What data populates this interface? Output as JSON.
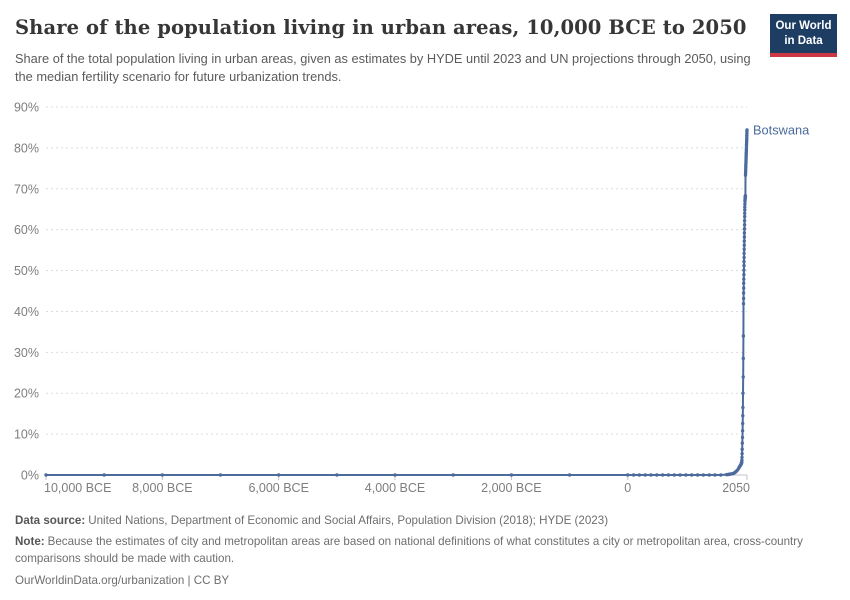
{
  "header": {
    "title": "Share of the population living in urban areas, 10,000 BCE to 2050",
    "subtitle": "Share of the total population living in urban areas, given as estimates by HYDE until 2023 and UN projections through 2050, using the median fertility scenario for future urbanization trends.",
    "logo": {
      "line1": "Our World",
      "line2": "in Data",
      "bg_color": "#1d3d63",
      "accent_color": "#cb3843"
    }
  },
  "chart_data": {
    "type": "line",
    "title": "Share of the population living in urban areas, 10,000 BCE to 2050",
    "xlabel": "",
    "ylabel": "",
    "xlim": [
      -10000,
      2050
    ],
    "ylim": [
      0,
      90
    ],
    "grid": "horizontal-dashed",
    "grid_color": "#dcdcdc",
    "axis_color": "#c3c3c3",
    "tick_label_color": "#7e7e7e",
    "yticks": [
      0,
      10,
      20,
      30,
      40,
      50,
      60,
      70,
      80,
      90
    ],
    "ytick_suffix": "%",
    "xticks": [
      {
        "v": -10000,
        "label": "10,000 BCE"
      },
      {
        "v": -8000,
        "label": "8,000 BCE"
      },
      {
        "v": -6000,
        "label": "6,000 BCE"
      },
      {
        "v": -4000,
        "label": "4,000 BCE"
      },
      {
        "v": -2000,
        "label": "2,000 BCE"
      },
      {
        "v": 0,
        "label": "0"
      },
      {
        "v": 2050,
        "label": "2050"
      }
    ],
    "legend_position": "end-of-line-label",
    "series": [
      {
        "name": "Botswana",
        "color": "#4c6a9c",
        "points": [
          [
            -10000,
            0
          ],
          [
            -9000,
            0
          ],
          [
            -8000,
            0
          ],
          [
            -7000,
            0
          ],
          [
            -6000,
            0
          ],
          [
            -5000,
            0
          ],
          [
            -4000,
            0
          ],
          [
            -3000,
            0
          ],
          [
            -2000,
            0
          ],
          [
            -1000,
            0
          ],
          [
            0,
            0
          ],
          [
            100,
            0
          ],
          [
            200,
            0
          ],
          [
            300,
            0
          ],
          [
            400,
            0
          ],
          [
            500,
            0
          ],
          [
            600,
            0
          ],
          [
            700,
            0
          ],
          [
            800,
            0
          ],
          [
            900,
            0
          ],
          [
            1000,
            0
          ],
          [
            1100,
            0
          ],
          [
            1200,
            0
          ],
          [
            1300,
            0
          ],
          [
            1400,
            0
          ],
          [
            1500,
            0
          ],
          [
            1600,
            0
          ],
          [
            1700,
            0.1
          ],
          [
            1720,
            0.1
          ],
          [
            1740,
            0.2
          ],
          [
            1760,
            0.2
          ],
          [
            1780,
            0.3
          ],
          [
            1800,
            0.3
          ],
          [
            1820,
            0.4
          ],
          [
            1840,
            0.6
          ],
          [
            1860,
            0.8
          ],
          [
            1880,
            1.1
          ],
          [
            1900,
            1.5
          ],
          [
            1910,
            1.7
          ],
          [
            1920,
            2.0
          ],
          [
            1930,
            2.2
          ],
          [
            1940,
            2.4
          ],
          [
            1950,
            2.7
          ],
          [
            1952,
            2.8
          ],
          [
            1954,
            2.9
          ],
          [
            1956,
            3.0
          ],
          [
            1958,
            3.0
          ],
          [
            1960,
            3.1
          ],
          [
            1962,
            3.6
          ],
          [
            1964,
            4.3
          ],
          [
            1966,
            5.2
          ],
          [
            1968,
            6.3
          ],
          [
            1970,
            7.8
          ],
          [
            1972,
            9.2
          ],
          [
            1974,
            10.8
          ],
          [
            1976,
            12.6
          ],
          [
            1978,
            14.5
          ],
          [
            1980,
            16.5
          ],
          [
            1982,
            20.0
          ],
          [
            1984,
            24.0
          ],
          [
            1986,
            28.5
          ],
          [
            1988,
            34.0
          ],
          [
            1990,
            41.9
          ],
          [
            1991,
            43.2
          ],
          [
            1992,
            44.5
          ],
          [
            1993,
            45.7
          ],
          [
            1994,
            46.9
          ],
          [
            1995,
            47.9
          ],
          [
            1996,
            49.0
          ],
          [
            1997,
            50.1
          ],
          [
            1998,
            51.2
          ],
          [
            1999,
            52.2
          ],
          [
            2000,
            53.2
          ],
          [
            2001,
            54.2
          ],
          [
            2002,
            55.2
          ],
          [
            2003,
            56.2
          ],
          [
            2004,
            57.2
          ],
          [
            2005,
            58.2
          ],
          [
            2006,
            59.2
          ],
          [
            2007,
            60.2
          ],
          [
            2008,
            61.2
          ],
          [
            2009,
            62.2
          ],
          [
            2010,
            63.2
          ],
          [
            2011,
            64.0
          ],
          [
            2012,
            64.8
          ],
          [
            2013,
            65.5
          ],
          [
            2014,
            66.2
          ],
          [
            2015,
            66.9
          ],
          [
            2016,
            67.2
          ],
          [
            2017,
            67.5
          ],
          [
            2018,
            67.7
          ],
          [
            2019,
            67.9
          ],
          [
            2020,
            68.0
          ],
          [
            2021,
            68.1
          ],
          [
            2022,
            68.2
          ],
          [
            2023,
            68.3
          ],
          [
            2025,
            73.3
          ],
          [
            2026,
            73.8
          ],
          [
            2027,
            74.3
          ],
          [
            2028,
            74.8
          ],
          [
            2029,
            75.3
          ],
          [
            2030,
            75.8
          ],
          [
            2031,
            76.2
          ],
          [
            2032,
            76.6
          ],
          [
            2033,
            77.0
          ],
          [
            2034,
            77.4
          ],
          [
            2035,
            77.8
          ],
          [
            2036,
            78.2
          ],
          [
            2037,
            78.6
          ],
          [
            2038,
            79.0
          ],
          [
            2039,
            79.4
          ],
          [
            2040,
            79.8
          ],
          [
            2041,
            80.3
          ],
          [
            2042,
            80.8
          ],
          [
            2043,
            81.2
          ],
          [
            2044,
            81.6
          ],
          [
            2045,
            82.0
          ],
          [
            2046,
            82.5
          ],
          [
            2047,
            83.0
          ],
          [
            2048,
            83.5
          ],
          [
            2049,
            84.0
          ],
          [
            2050,
            84.4
          ]
        ]
      }
    ]
  },
  "footer": {
    "data_source_label": "Data source:",
    "data_source": "United Nations, Department of Economic and Social Affairs, Population Division (2018); HYDE (2023)",
    "note_label": "Note:",
    "note": "Because the estimates of city and metropolitan areas are based on national definitions of what constitutes a city or metropolitan area, cross-country comparisons should be made with caution.",
    "citation": "OurWorldinData.org/urbanization | CC BY"
  }
}
